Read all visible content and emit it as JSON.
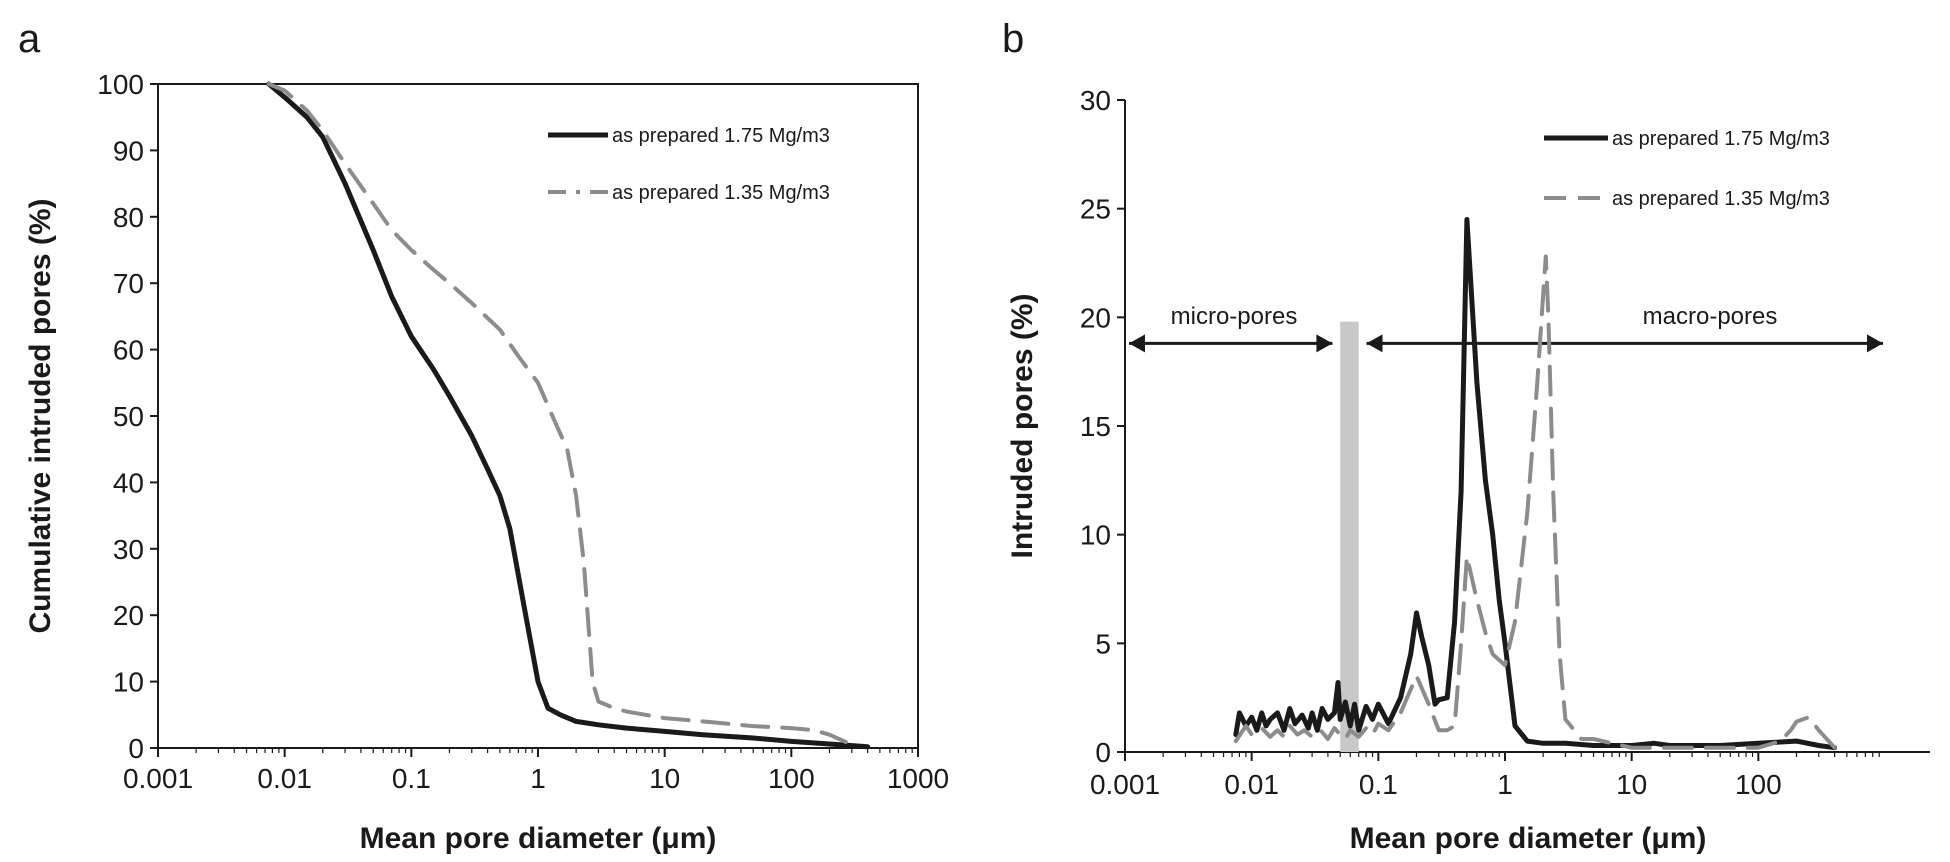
{
  "chart_data": [
    {
      "panel": "a",
      "type": "line",
      "xscale": "log",
      "xlim": [
        0.001,
        1000
      ],
      "ylim": [
        0,
        100
      ],
      "xticks": [
        0.001,
        0.01,
        0.1,
        1,
        10,
        100,
        1000
      ],
      "xtick_labels": [
        "0.001",
        "0.01",
        "0.1",
        "1",
        "10",
        "100",
        "1000"
      ],
      "yticks": [
        0,
        10,
        20,
        30,
        40,
        50,
        60,
        70,
        80,
        90,
        100
      ],
      "ytick_labels": [
        "0",
        "10",
        "20",
        "30",
        "40",
        "50",
        "60",
        "70",
        "80",
        "90",
        "100"
      ],
      "xlabel": "Mean pore diameter (μm)",
      "ylabel": "Cumulative intruded pores (%)",
      "legend_position": "top-right",
      "grid": false,
      "series": [
        {
          "name": "as prepared 1.75 Mg/m3",
          "color": "#1a1a1a",
          "style": "solid",
          "x": [
            0.0075,
            0.01,
            0.015,
            0.02,
            0.03,
            0.05,
            0.07,
            0.1,
            0.15,
            0.2,
            0.3,
            0.4,
            0.5,
            0.6,
            0.8,
            1.0,
            1.2,
            1.5,
            2,
            3,
            5,
            10,
            20,
            50,
            100,
            200,
            400
          ],
          "y": [
            100,
            98,
            95,
            92,
            85,
            75,
            68,
            62,
            57,
            53,
            47,
            42,
            38,
            33,
            20,
            10,
            6,
            5,
            4,
            3.5,
            3,
            2.5,
            2,
            1.5,
            1,
            0.6,
            0.2
          ]
        },
        {
          "name": "as prepared 1.35 Mg/m3",
          "color": "#8c8c8c",
          "style": "dashed",
          "x": [
            0.0075,
            0.01,
            0.015,
            0.02,
            0.03,
            0.05,
            0.07,
            0.1,
            0.15,
            0.2,
            0.3,
            0.5,
            0.7,
            1.0,
            1.3,
            1.7,
            2.0,
            2.3,
            2.7,
            3,
            4,
            5,
            10,
            20,
            50,
            100,
            150,
            200,
            300
          ],
          "y": [
            100,
            99,
            96,
            93,
            88,
            82,
            78,
            75,
            72,
            70,
            67,
            63,
            59,
            55,
            50,
            45,
            38,
            28,
            10,
            7,
            6,
            5.5,
            4.5,
            4,
            3.3,
            3,
            2.7,
            2,
            0.5
          ]
        }
      ]
    },
    {
      "panel": "b",
      "type": "line",
      "xscale": "log",
      "xlim": [
        0.001,
        1000
      ],
      "ylim": [
        0,
        30
      ],
      "xticks": [
        0.001,
        0.01,
        0.1,
        1,
        10,
        100
      ],
      "xtick_labels": [
        "0.001",
        "0.01",
        "0.1",
        "1",
        "10",
        "100"
      ],
      "yticks": [
        0,
        5,
        10,
        15,
        20,
        25,
        30
      ],
      "ytick_labels": [
        "0",
        "5",
        "10",
        "15",
        "20",
        "25",
        "30"
      ],
      "xlabel": "Mean pore diameter (μm)",
      "ylabel": "Intruded pores (%)",
      "legend_position": "top-right",
      "grid": false,
      "band": {
        "x": [
          0.05,
          0.07
        ],
        "y": [
          0,
          19.8
        ],
        "color": "#c8c8c8"
      },
      "annotations": [
        {
          "text": "micro-pores",
          "x": 0.009,
          "y": 20.3,
          "arrow_from": 0.001,
          "arrow_to": 0.045,
          "arrow_y": 18.8
        },
        {
          "text": "macro-pores",
          "x": 30,
          "y": 20.3,
          "arrow_from": 0.075,
          "arrow_to": 1000,
          "arrow_y": 18.8
        }
      ],
      "series": [
        {
          "name": "as prepared 1.75 Mg/m3",
          "color": "#1a1a1a",
          "style": "solid",
          "x": [
            0.0075,
            0.008,
            0.009,
            0.01,
            0.011,
            0.012,
            0.013,
            0.014,
            0.016,
            0.018,
            0.02,
            0.022,
            0.025,
            0.028,
            0.03,
            0.033,
            0.036,
            0.04,
            0.045,
            0.048,
            0.05,
            0.055,
            0.06,
            0.065,
            0.07,
            0.08,
            0.09,
            0.1,
            0.12,
            0.15,
            0.18,
            0.2,
            0.22,
            0.25,
            0.28,
            0.3,
            0.35,
            0.4,
            0.45,
            0.5,
            0.6,
            0.7,
            0.8,
            0.9,
            1.0,
            1.2,
            1.5,
            2,
            3,
            5,
            10,
            15,
            20,
            50,
            100,
            200,
            300,
            400
          ],
          "y": [
            0.8,
            1.8,
            1.2,
            1.6,
            1.0,
            1.8,
            1.2,
            1.5,
            1.8,
            1.0,
            2.0,
            1.3,
            1.7,
            1.1,
            1.8,
            1.0,
            2.0,
            1.5,
            1.8,
            3.2,
            1.5,
            2.3,
            1.2,
            2.2,
            1.0,
            2.1,
            1.5,
            2.2,
            1.3,
            2.5,
            4.5,
            6.4,
            5.3,
            4.0,
            2.2,
            2.4,
            2.5,
            6.0,
            12.0,
            24.5,
            17.0,
            12.5,
            10.0,
            7.0,
            5.0,
            1.2,
            0.5,
            0.4,
            0.4,
            0.3,
            0.3,
            0.4,
            0.3,
            0.3,
            0.4,
            0.5,
            0.3,
            0.2
          ]
        },
        {
          "name": "as prepared 1.35 Mg/m3",
          "color": "#8c8c8c",
          "style": "dashed",
          "x": [
            0.0075,
            0.009,
            0.01,
            0.012,
            0.014,
            0.016,
            0.018,
            0.02,
            0.023,
            0.026,
            0.03,
            0.035,
            0.04,
            0.045,
            0.05,
            0.055,
            0.06,
            0.07,
            0.08,
            0.09,
            0.1,
            0.12,
            0.15,
            0.2,
            0.25,
            0.3,
            0.35,
            0.4,
            0.45,
            0.5,
            0.6,
            0.7,
            0.8,
            1.0,
            1.2,
            1.5,
            1.8,
            2.0,
            2.1,
            2.2,
            2.4,
            2.7,
            3.0,
            4,
            5,
            10,
            20,
            50,
            100,
            150,
            180,
            200,
            250,
            300,
            400
          ],
          "y": [
            0.5,
            1.2,
            0.8,
            1.1,
            0.7,
            1.0,
            0.7,
            1.2,
            0.8,
            1.0,
            0.7,
            1.0,
            0.6,
            1.1,
            0.8,
            0.6,
            1.0,
            0.7,
            1.1,
            0.8,
            1.3,
            1.0,
            1.8,
            3.5,
            2.2,
            1.0,
            1.0,
            1.2,
            5.0,
            9.0,
            7.0,
            5.5,
            4.5,
            4.0,
            6.0,
            11.0,
            17.0,
            21.0,
            22.8,
            20.0,
            12.0,
            4.5,
            1.5,
            0.6,
            0.6,
            0.2,
            0.2,
            0.2,
            0.2,
            0.5,
            1.0,
            1.4,
            1.6,
            1.0,
            0.2
          ]
        }
      ]
    }
  ],
  "figure": {
    "panel_a_letter": "a",
    "panel_b_letter": "b",
    "legend": {
      "entry_1": "as prepared  1.75 Mg/m3",
      "entry_2": "as prepared  1.35 Mg/m3"
    },
    "panel_a_xlabel": "Mean pore diameter (μm)",
    "panel_a_ylabel": "Cumulative intruded pores (%)",
    "panel_b_xlabel": "Mean pore diameter (μm)",
    "panel_b_ylabel": "Intruded pores (%)",
    "micro_label": "micro-pores",
    "macro_label": "macro-pores"
  }
}
